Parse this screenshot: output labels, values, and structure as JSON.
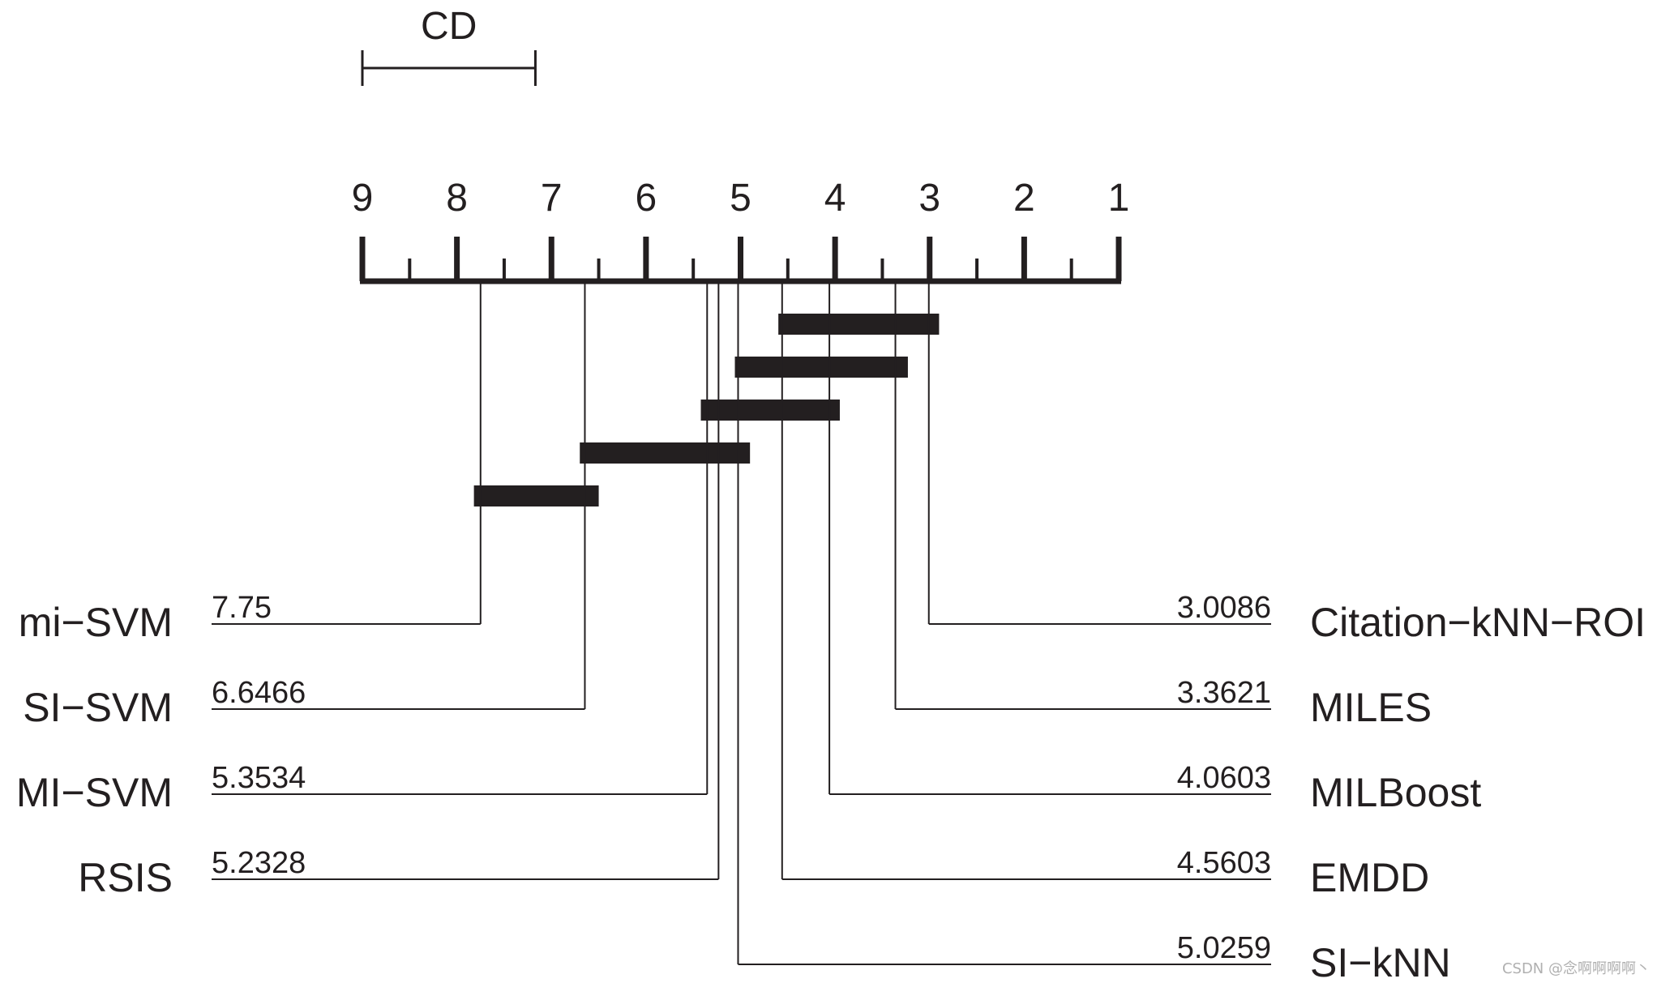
{
  "chart_data": {
    "type": "critical-difference-diagram",
    "axis": {
      "ticks": [
        "9",
        "8",
        "7",
        "6",
        "5",
        "4",
        "3",
        "2",
        "1"
      ],
      "range": [
        9,
        1
      ],
      "minor_ticks_at_half": true
    },
    "cd": {
      "label": "CD",
      "from": 9,
      "to": 7.17
    },
    "methods_left": [
      {
        "name": "mi−SVM",
        "rank": 7.75,
        "rank_label": "7.75"
      },
      {
        "name": "SI−SVM",
        "rank": 6.6466,
        "rank_label": "6.6466"
      },
      {
        "name": "MI−SVM",
        "rank": 5.3534,
        "rank_label": "5.3534"
      },
      {
        "name": "RSIS",
        "rank": 5.2328,
        "rank_label": "5.2328"
      }
    ],
    "methods_right": [
      {
        "name": "Citation−kNN−ROI",
        "rank": 3.0086,
        "rank_label": "3.0086"
      },
      {
        "name": "MILES",
        "rank": 3.3621,
        "rank_label": "3.3621"
      },
      {
        "name": "MILBoost",
        "rank": 4.0603,
        "rank_label": "4.0603"
      },
      {
        "name": "EMDD",
        "rank": 4.5603,
        "rank_label": "4.5603"
      },
      {
        "name": "SI−kNN",
        "rank": 5.0259,
        "rank_label": "5.0259"
      }
    ],
    "cliques": [
      {
        "from": 4.6,
        "to": 2.9
      },
      {
        "from": 5.06,
        "to": 3.23
      },
      {
        "from": 5.42,
        "to": 3.95
      },
      {
        "from": 6.7,
        "to": 4.9
      },
      {
        "from": 7.82,
        "to": 6.5
      }
    ],
    "colors": {
      "ink": "#231f20",
      "watermark": "#b0b0b0"
    }
  },
  "watermark": "CSDN @念啊啊啊啊丶"
}
